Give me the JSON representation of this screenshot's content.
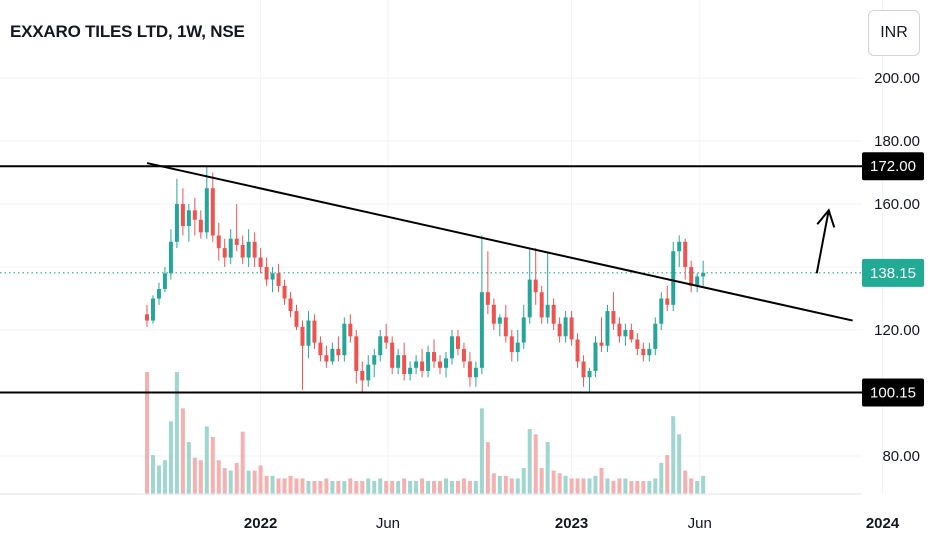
{
  "header": {
    "title": "EXXARO TILES LTD, 1W, NSE",
    "currency": "INR"
  },
  "colors": {
    "up": "#26a69a",
    "down": "#ef5350",
    "upVol": "#9fd6cf",
    "downVol": "#f5b1b0",
    "lastPrice": "#22ab94",
    "level": "#000000",
    "grid": "#f0f3fa"
  },
  "chart_data": {
    "type": "candlestick",
    "title": "EXXARO TILES LTD, 1W, NSE",
    "y_axis": {
      "ticks": [
        200,
        180,
        160,
        140,
        120,
        100,
        80
      ],
      "tick_labels": [
        "200.00",
        "180.00",
        "160.00",
        "120.00",
        "80.00"
      ],
      "range": [
        76,
        210
      ]
    },
    "x_axis": {
      "tick_labels": [
        "2022",
        "Jun",
        "2023",
        "Jun",
        "2024"
      ],
      "start": "2021-08-23",
      "interval": "1W"
    },
    "horizontal_levels": [
      {
        "price": 172.0,
        "label": "172.00"
      },
      {
        "price": 100.15,
        "label": "100.15"
      }
    ],
    "last_price": {
      "price": 138.15,
      "label": "138.15"
    },
    "trendline": {
      "from": {
        "date": "2021-08-23",
        "price": 173
      },
      "to": {
        "date": "2023-11-27",
        "price": 123
      }
    },
    "projection_arrow": {
      "from": {
        "date": "2023-10-16",
        "price": 138
      },
      "to": {
        "date": "2023-10-30",
        "price": 158
      }
    },
    "candles": [
      [
        125,
        128,
        121,
        123
      ],
      [
        123,
        131,
        122,
        130
      ],
      [
        130,
        135,
        128,
        133
      ],
      [
        133,
        140,
        132,
        138
      ],
      [
        138,
        152,
        136,
        148
      ],
      [
        148,
        168,
        146,
        160
      ],
      [
        160,
        165,
        150,
        153
      ],
      [
        153,
        160,
        148,
        158
      ],
      [
        158,
        162,
        150,
        155
      ],
      [
        155,
        158,
        149,
        151
      ],
      [
        151,
        172,
        149,
        165
      ],
      [
        165,
        170,
        148,
        150
      ],
      [
        150,
        154,
        142,
        146
      ],
      [
        146,
        149,
        140,
        143
      ],
      [
        143,
        152,
        141,
        149
      ],
      [
        149,
        160,
        145,
        147
      ],
      [
        147,
        150,
        141,
        143
      ],
      [
        143,
        152,
        140,
        148
      ],
      [
        148,
        151,
        140,
        143
      ],
      [
        143,
        146,
        138,
        140
      ],
      [
        140,
        143,
        134,
        136
      ],
      [
        136,
        140,
        132,
        138
      ],
      [
        138,
        141,
        132,
        134
      ],
      [
        134,
        136,
        128,
        130
      ],
      [
        130,
        132,
        124,
        126
      ],
      [
        126,
        128,
        120,
        121
      ],
      [
        121,
        123,
        101,
        115
      ],
      [
        115,
        126,
        111,
        123
      ],
      [
        123,
        125,
        114,
        116
      ],
      [
        116,
        118,
        110,
        112
      ],
      [
        112,
        115,
        108,
        110
      ],
      [
        110,
        116,
        109,
        114
      ],
      [
        114,
        118,
        110,
        112
      ],
      [
        112,
        124,
        110,
        122
      ],
      [
        122,
        125,
        116,
        118
      ],
      [
        118,
        120,
        103,
        107
      ],
      [
        107,
        110,
        100,
        104
      ],
      [
        104,
        112,
        102,
        109
      ],
      [
        109,
        114,
        105,
        112
      ],
      [
        112,
        120,
        110,
        118
      ],
      [
        118,
        122,
        114,
        116
      ],
      [
        116,
        118,
        106,
        108
      ],
      [
        108,
        114,
        106,
        112
      ],
      [
        112,
        116,
        104,
        106
      ],
      [
        106,
        110,
        104,
        108
      ],
      [
        108,
        112,
        106,
        110
      ],
      [
        110,
        114,
        105,
        107
      ],
      [
        107,
        115,
        105,
        113
      ],
      [
        113,
        117,
        108,
        110
      ],
      [
        110,
        112,
        106,
        108
      ],
      [
        108,
        113,
        105,
        111
      ],
      [
        111,
        120,
        109,
        118
      ],
      [
        118,
        120,
        112,
        114
      ],
      [
        114,
        116,
        108,
        110
      ],
      [
        110,
        113,
        102,
        105
      ],
      [
        105,
        110,
        102,
        108
      ],
      [
        108,
        150,
        106,
        132
      ],
      [
        132,
        145,
        125,
        128
      ],
      [
        128,
        130,
        120,
        122
      ],
      [
        122,
        125,
        118,
        124
      ],
      [
        124,
        128,
        116,
        118
      ],
      [
        118,
        120,
        110,
        113
      ],
      [
        113,
        120,
        110,
        116
      ],
      [
        116,
        128,
        114,
        124
      ],
      [
        124,
        146,
        122,
        136
      ],
      [
        136,
        146,
        128,
        132
      ],
      [
        132,
        134,
        122,
        124
      ],
      [
        124,
        145,
        122,
        128
      ],
      [
        128,
        130,
        120,
        122
      ],
      [
        122,
        124,
        116,
        118
      ],
      [
        118,
        126,
        116,
        124
      ],
      [
        124,
        126,
        115,
        117
      ],
      [
        117,
        119,
        108,
        110
      ],
      [
        110,
        112,
        102,
        105
      ],
      [
        105,
        108,
        100,
        107
      ],
      [
        107,
        118,
        105,
        116
      ],
      [
        116,
        124,
        113,
        115
      ],
      [
        115,
        128,
        113,
        126
      ],
      [
        126,
        132,
        120,
        122
      ],
      [
        122,
        124,
        116,
        118
      ],
      [
        118,
        122,
        115,
        120
      ],
      [
        120,
        122,
        116,
        117
      ],
      [
        117,
        119,
        112,
        114
      ],
      [
        114,
        116,
        110,
        112
      ],
      [
        112,
        116,
        110,
        114
      ],
      [
        114,
        124,
        112,
        122
      ],
      [
        122,
        132,
        120,
        130
      ],
      [
        130,
        134,
        126,
        128
      ],
      [
        128,
        148,
        126,
        145
      ],
      [
        145,
        150,
        140,
        148
      ],
      [
        148,
        149,
        136,
        140
      ],
      [
        140,
        142,
        132,
        134
      ],
      [
        134,
        138,
        132,
        137
      ],
      [
        137,
        142,
        134,
        138.15
      ]
    ],
    "volumes": [
      47,
      15,
      11,
      13,
      28,
      47,
      33,
      20,
      14,
      13,
      26,
      22,
      13,
      10,
      9,
      12,
      24,
      9,
      9,
      11,
      7,
      7,
      6,
      6,
      7,
      6,
      6,
      5,
      5,
      5,
      6,
      5,
      5,
      5,
      6,
      5,
      5,
      6,
      5,
      6,
      5,
      5,
      5,
      6,
      5,
      5,
      6,
      5,
      5,
      5,
      6,
      5,
      5,
      6,
      5,
      5,
      33,
      20,
      8,
      7,
      7,
      6,
      6,
      10,
      25,
      23,
      10,
      20,
      9,
      8,
      7,
      6,
      6,
      6,
      6,
      7,
      10,
      6,
      5,
      6,
      6,
      5,
      5,
      5,
      5,
      6,
      12,
      15,
      30,
      23,
      9,
      6,
      5,
      7
    ]
  }
}
